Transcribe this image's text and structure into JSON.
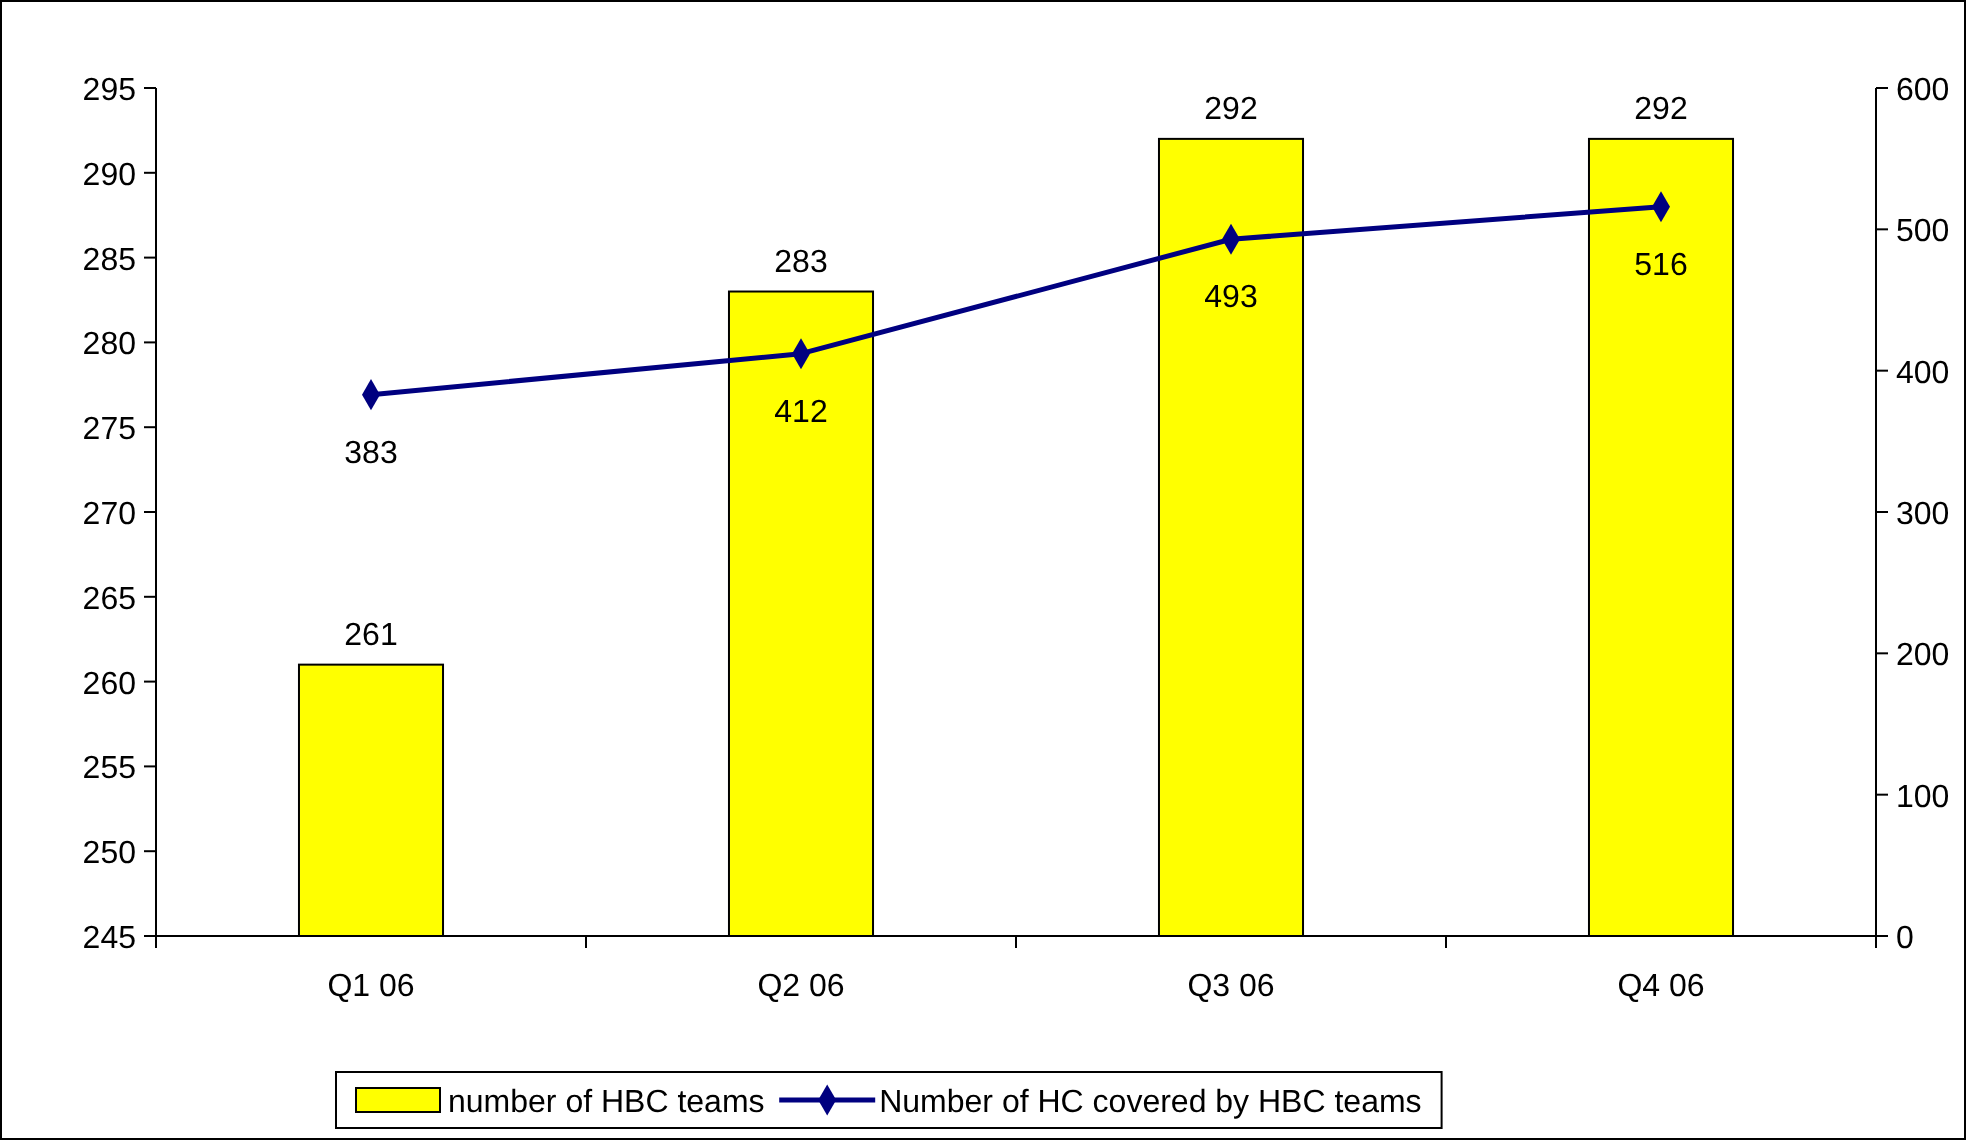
{
  "chart_data": {
    "type": "bar",
    "categories": [
      "Q1 06",
      "Q2 06",
      "Q3 06",
      "Q4 06"
    ],
    "series": [
      {
        "name": "number of HBC teams",
        "color": "#ffff00",
        "values": [
          261,
          283,
          292,
          292
        ]
      },
      {
        "name": "Number of HC covered by HBC teams",
        "type": "line",
        "axis": "y2",
        "color": "#000080",
        "values": [
          383,
          412,
          493,
          516
        ]
      }
    ],
    "ylim": [
      245,
      295
    ],
    "yticks": [
      245,
      250,
      255,
      260,
      265,
      270,
      275,
      280,
      285,
      290,
      295
    ],
    "y2lim": [
      0,
      600
    ],
    "y2ticks": [
      0,
      100,
      200,
      300,
      400,
      500,
      600
    ],
    "data_labels": true,
    "legend": "bottom",
    "marker": "diamond",
    "line_style": "solid",
    "grid": false
  }
}
